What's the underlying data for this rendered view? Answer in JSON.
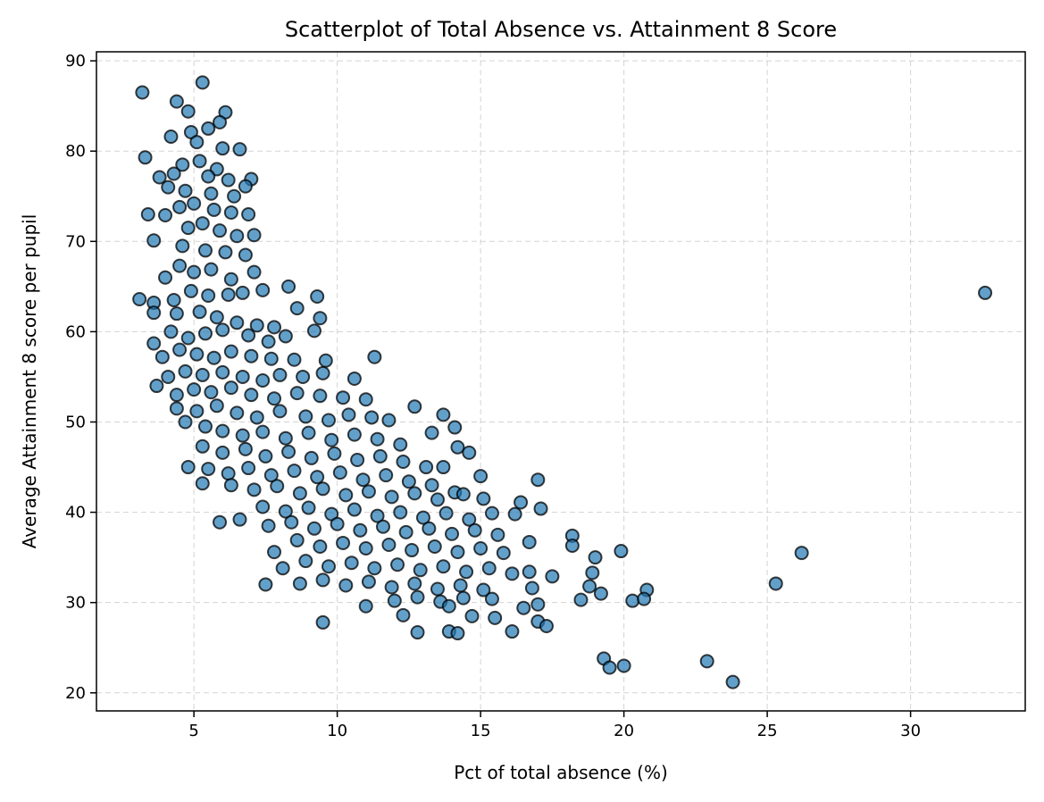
{
  "chart_data": {
    "type": "scatter",
    "title": "Scatterplot of Total Absence vs. Attainment 8 Score",
    "xlabel": "Pct of total absence (%)",
    "ylabel": "Average Attainment 8 score per pupil",
    "xlim": [
      1.6,
      34.0
    ],
    "ylim": [
      18.0,
      91.0
    ],
    "xticks": [
      5,
      10,
      15,
      20,
      25,
      30
    ],
    "yticks": [
      20,
      30,
      40,
      50,
      60,
      70,
      80,
      90
    ],
    "xtick_labels": [
      "5",
      "10",
      "15",
      "20",
      "25",
      "30"
    ],
    "ytick_labels": [
      "20",
      "30",
      "40",
      "50",
      "60",
      "70",
      "80",
      "90"
    ],
    "grid": true,
    "colors": {
      "point_fill": "#1f77b4",
      "point_edge": "#000000",
      "grid": "#b0b0b0"
    },
    "points": [
      [
        3.2,
        86.5
      ],
      [
        5.3,
        87.6
      ],
      [
        4.4,
        85.5
      ],
      [
        4.8,
        84.4
      ],
      [
        6.1,
        84.3
      ],
      [
        5.9,
        83.2
      ],
      [
        5.5,
        82.5
      ],
      [
        4.9,
        82.1
      ],
      [
        4.2,
        81.6
      ],
      [
        3.3,
        79.3
      ],
      [
        5.1,
        81.0
      ],
      [
        6.0,
        80.3
      ],
      [
        6.6,
        80.2
      ],
      [
        4.6,
        78.5
      ],
      [
        5.2,
        78.9
      ],
      [
        5.8,
        78.0
      ],
      [
        3.8,
        77.1
      ],
      [
        4.3,
        77.5
      ],
      [
        5.5,
        77.2
      ],
      [
        6.2,
        76.8
      ],
      [
        7.0,
        76.9
      ],
      [
        6.8,
        76.1
      ],
      [
        4.1,
        76.0
      ],
      [
        4.7,
        75.6
      ],
      [
        5.6,
        75.3
      ],
      [
        6.4,
        75.0
      ],
      [
        3.4,
        73.0
      ],
      [
        4.0,
        72.9
      ],
      [
        4.5,
        73.8
      ],
      [
        5.0,
        74.2
      ],
      [
        5.7,
        73.5
      ],
      [
        6.3,
        73.2
      ],
      [
        6.9,
        73.0
      ],
      [
        3.6,
        70.1
      ],
      [
        4.8,
        71.5
      ],
      [
        5.3,
        72.0
      ],
      [
        5.9,
        71.2
      ],
      [
        6.5,
        70.6
      ],
      [
        7.1,
        70.7
      ],
      [
        4.6,
        69.5
      ],
      [
        5.4,
        69.0
      ],
      [
        6.1,
        68.8
      ],
      [
        6.8,
        68.5
      ],
      [
        4.0,
        66.0
      ],
      [
        4.5,
        67.3
      ],
      [
        5.0,
        66.6
      ],
      [
        5.6,
        66.9
      ],
      [
        6.3,
        65.8
      ],
      [
        7.1,
        66.6
      ],
      [
        3.1,
        63.6
      ],
      [
        3.6,
        63.2
      ],
      [
        4.3,
        63.5
      ],
      [
        4.9,
        64.5
      ],
      [
        5.5,
        64.0
      ],
      [
        6.2,
        64.1
      ],
      [
        6.7,
        64.3
      ],
      [
        7.4,
        64.6
      ],
      [
        8.3,
        65.0
      ],
      [
        9.3,
        63.9
      ],
      [
        3.6,
        62.1
      ],
      [
        4.4,
        62.0
      ],
      [
        5.2,
        62.2
      ],
      [
        5.8,
        61.6
      ],
      [
        6.5,
        61.0
      ],
      [
        7.2,
        60.7
      ],
      [
        7.8,
        60.5
      ],
      [
        8.6,
        62.6
      ],
      [
        9.4,
        61.5
      ],
      [
        4.2,
        60.0
      ],
      [
        4.8,
        59.3
      ],
      [
        5.4,
        59.8
      ],
      [
        6.0,
        60.2
      ],
      [
        6.9,
        59.6
      ],
      [
        7.6,
        58.9
      ],
      [
        8.2,
        59.5
      ],
      [
        9.2,
        60.1
      ],
      [
        3.6,
        58.7
      ],
      [
        3.9,
        57.2
      ],
      [
        4.5,
        58.0
      ],
      [
        5.1,
        57.5
      ],
      [
        5.7,
        57.1
      ],
      [
        6.3,
        57.8
      ],
      [
        7.0,
        57.3
      ],
      [
        7.7,
        57.0
      ],
      [
        8.5,
        56.9
      ],
      [
        9.6,
        56.8
      ],
      [
        11.3,
        57.2
      ],
      [
        4.1,
        55.0
      ],
      [
        4.7,
        55.6
      ],
      [
        5.3,
        55.2
      ],
      [
        6.0,
        55.5
      ],
      [
        6.7,
        55.0
      ],
      [
        7.4,
        54.6
      ],
      [
        8.0,
        55.2
      ],
      [
        8.8,
        55.0
      ],
      [
        9.5,
        55.4
      ],
      [
        10.6,
        54.8
      ],
      [
        3.7,
        54.0
      ],
      [
        4.4,
        53.0
      ],
      [
        5.0,
        53.6
      ],
      [
        5.6,
        53.3
      ],
      [
        6.3,
        53.8
      ],
      [
        7.0,
        53.0
      ],
      [
        7.8,
        52.6
      ],
      [
        8.6,
        53.2
      ],
      [
        9.4,
        52.9
      ],
      [
        10.2,
        52.7
      ],
      [
        11.0,
        52.5
      ],
      [
        4.4,
        51.5
      ],
      [
        5.1,
        51.2
      ],
      [
        5.8,
        51.8
      ],
      [
        6.5,
        51.0
      ],
      [
        7.2,
        50.5
      ],
      [
        8.0,
        51.2
      ],
      [
        8.9,
        50.6
      ],
      [
        9.7,
        50.2
      ],
      [
        10.4,
        50.8
      ],
      [
        11.2,
        50.5
      ],
      [
        11.8,
        50.2
      ],
      [
        12.7,
        51.7
      ],
      [
        13.7,
        50.8
      ],
      [
        14.1,
        49.4
      ],
      [
        4.7,
        50.0
      ],
      [
        5.4,
        49.5
      ],
      [
        6.0,
        49.0
      ],
      [
        6.7,
        48.5
      ],
      [
        7.4,
        48.9
      ],
      [
        8.2,
        48.2
      ],
      [
        9.0,
        48.8
      ],
      [
        9.8,
        48.0
      ],
      [
        10.6,
        48.6
      ],
      [
        11.4,
        48.1
      ],
      [
        12.2,
        47.5
      ],
      [
        13.3,
        48.8
      ],
      [
        14.2,
        47.2
      ],
      [
        14.6,
        46.6
      ],
      [
        5.3,
        47.3
      ],
      [
        6.0,
        46.6
      ],
      [
        6.8,
        47.0
      ],
      [
        7.5,
        46.2
      ],
      [
        8.3,
        46.7
      ],
      [
        9.1,
        46.0
      ],
      [
        9.9,
        46.5
      ],
      [
        10.7,
        45.8
      ],
      [
        11.5,
        46.2
      ],
      [
        12.3,
        45.6
      ],
      [
        13.1,
        45.0
      ],
      [
        13.7,
        45.0
      ],
      [
        4.8,
        45.0
      ],
      [
        5.5,
        44.8
      ],
      [
        6.2,
        44.3
      ],
      [
        6.9,
        44.9
      ],
      [
        7.7,
        44.1
      ],
      [
        8.5,
        44.6
      ],
      [
        9.3,
        43.9
      ],
      [
        10.1,
        44.4
      ],
      [
        10.9,
        43.6
      ],
      [
        11.7,
        44.1
      ],
      [
        12.5,
        43.4
      ],
      [
        13.3,
        43.0
      ],
      [
        14.1,
        42.2
      ],
      [
        15.0,
        44.0
      ],
      [
        17.0,
        43.6
      ],
      [
        5.3,
        43.2
      ],
      [
        6.3,
        43.0
      ],
      [
        7.1,
        42.5
      ],
      [
        7.9,
        42.9
      ],
      [
        8.7,
        42.1
      ],
      [
        9.5,
        42.6
      ],
      [
        10.3,
        41.9
      ],
      [
        11.1,
        42.3
      ],
      [
        11.9,
        41.7
      ],
      [
        12.7,
        42.1
      ],
      [
        13.5,
        41.4
      ],
      [
        14.4,
        42.0
      ],
      [
        15.1,
        41.5
      ],
      [
        16.4,
        41.1
      ],
      [
        6.6,
        39.2
      ],
      [
        7.4,
        40.6
      ],
      [
        8.2,
        40.1
      ],
      [
        9.0,
        40.5
      ],
      [
        9.8,
        39.8
      ],
      [
        10.6,
        40.3
      ],
      [
        11.4,
        39.6
      ],
      [
        12.2,
        40.0
      ],
      [
        13.0,
        39.4
      ],
      [
        13.8,
        39.9
      ],
      [
        14.6,
        39.2
      ],
      [
        15.4,
        39.9
      ],
      [
        16.2,
        39.8
      ],
      [
        17.1,
        40.4
      ],
      [
        5.9,
        38.9
      ],
      [
        7.6,
        38.5
      ],
      [
        8.4,
        38.9
      ],
      [
        9.2,
        38.2
      ],
      [
        10.0,
        38.7
      ],
      [
        10.8,
        38.0
      ],
      [
        11.6,
        38.4
      ],
      [
        12.4,
        37.8
      ],
      [
        13.2,
        38.2
      ],
      [
        14.0,
        37.6
      ],
      [
        14.8,
        38.0
      ],
      [
        15.6,
        37.5
      ],
      [
        18.2,
        37.4
      ],
      [
        7.8,
        35.6
      ],
      [
        8.6,
        36.9
      ],
      [
        9.4,
        36.2
      ],
      [
        10.2,
        36.6
      ],
      [
        11.0,
        36.0
      ],
      [
        11.8,
        36.4
      ],
      [
        12.6,
        35.8
      ],
      [
        13.4,
        36.2
      ],
      [
        14.2,
        35.6
      ],
      [
        15.0,
        36.0
      ],
      [
        15.8,
        35.5
      ],
      [
        16.7,
        36.7
      ],
      [
        18.2,
        36.3
      ],
      [
        19.9,
        35.7
      ],
      [
        26.2,
        35.5
      ],
      [
        8.1,
        33.8
      ],
      [
        8.9,
        34.6
      ],
      [
        9.7,
        34.0
      ],
      [
        10.5,
        34.4
      ],
      [
        11.3,
        33.8
      ],
      [
        12.1,
        34.2
      ],
      [
        12.9,
        33.6
      ],
      [
        13.7,
        34.0
      ],
      [
        14.5,
        33.4
      ],
      [
        15.3,
        33.8
      ],
      [
        16.1,
        33.2
      ],
      [
        16.7,
        33.4
      ],
      [
        17.5,
        32.9
      ],
      [
        18.9,
        33.3
      ],
      [
        19.0,
        35.0
      ],
      [
        7.5,
        32.0
      ],
      [
        8.7,
        32.1
      ],
      [
        9.5,
        32.5
      ],
      [
        10.3,
        31.9
      ],
      [
        11.1,
        32.3
      ],
      [
        11.9,
        31.7
      ],
      [
        12.7,
        32.1
      ],
      [
        13.5,
        31.5
      ],
      [
        14.3,
        31.9
      ],
      [
        15.1,
        31.4
      ],
      [
        16.8,
        31.6
      ],
      [
        18.8,
        31.8
      ],
      [
        19.2,
        31.0
      ],
      [
        20.8,
        31.4
      ],
      [
        25.3,
        32.1
      ],
      [
        11.0,
        29.6
      ],
      [
        12.0,
        30.2
      ],
      [
        12.8,
        30.6
      ],
      [
        13.6,
        30.1
      ],
      [
        14.4,
        30.5
      ],
      [
        15.4,
        30.4
      ],
      [
        16.5,
        29.4
      ],
      [
        17.0,
        29.8
      ],
      [
        18.5,
        30.3
      ],
      [
        20.3,
        30.2
      ],
      [
        20.7,
        30.4
      ],
      [
        9.5,
        27.8
      ],
      [
        12.3,
        28.6
      ],
      [
        13.9,
        29.6
      ],
      [
        14.7,
        28.5
      ],
      [
        15.5,
        28.3
      ],
      [
        17.0,
        27.9
      ],
      [
        17.3,
        27.4
      ],
      [
        12.8,
        26.7
      ],
      [
        13.9,
        26.8
      ],
      [
        14.2,
        26.6
      ],
      [
        16.1,
        26.8
      ],
      [
        19.3,
        23.8
      ],
      [
        19.5,
        22.8
      ],
      [
        20.0,
        23.0
      ],
      [
        22.9,
        23.5
      ],
      [
        23.8,
        21.2
      ],
      [
        32.6,
        64.3
      ]
    ]
  }
}
